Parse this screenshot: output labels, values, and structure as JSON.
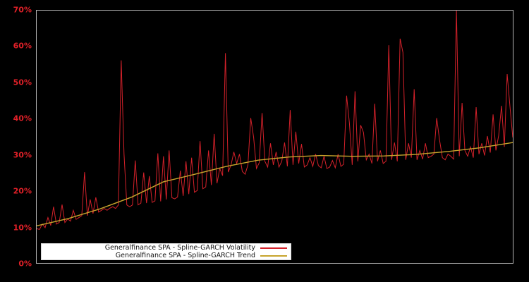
{
  "chart_data": {
    "type": "line",
    "title": "",
    "xlabel": "",
    "ylabel": "",
    "ylim": [
      0,
      70
    ],
    "grid": false,
    "background": "#000000",
    "plot_border_color": "#b5b5b5",
    "tick_label_color": "#e02028",
    "legend_position": "lower-left",
    "yticks": [
      {
        "value": 0,
        "label": "0%"
      },
      {
        "value": 10,
        "label": "10%"
      },
      {
        "value": 20,
        "label": "20%"
      },
      {
        "value": 30,
        "label": "30%"
      },
      {
        "value": 40,
        "label": "40%"
      },
      {
        "value": 50,
        "label": "50%"
      },
      {
        "value": 60,
        "label": "60%"
      },
      {
        "value": 70,
        "label": "70%"
      }
    ],
    "series": [
      {
        "name": "Generalfinance SPA - Spline-GARCH Volatility",
        "color": "#d4212a",
        "stroke_width": 1,
        "values": [
          9.5,
          9.3,
          10.8,
          9.8,
          12.6,
          10.4,
          15.6,
          10.8,
          11.2,
          16.2,
          11.2,
          12.2,
          11.6,
          14.6,
          12.1,
          12.6,
          13.1,
          25.2,
          13.1,
          17.6,
          13.7,
          18.2,
          14.1,
          14.6,
          15.1,
          14.6,
          15.2,
          15.6,
          15.1,
          16.1,
          56.2,
          30.2,
          16.1,
          15.6,
          16.1,
          28.4,
          16.1,
          16.6,
          25.1,
          16.6,
          24.1,
          16.8,
          17.2,
          30.4,
          17.1,
          29.6,
          17.6,
          31.2,
          18.1,
          17.8,
          18.3,
          25.6,
          18.6,
          28.2,
          19.1,
          29.2,
          19.6,
          20.1,
          33.8,
          20.6,
          21.1,
          31.2,
          21.6,
          35.8,
          22.1,
          26.2,
          24.2,
          58.2,
          25.2,
          27.2,
          30.8,
          27.6,
          30.2,
          25.4,
          24.6,
          27.2,
          40.2,
          34.8,
          26.2,
          27.8,
          41.6,
          28.2,
          26.6,
          33.2,
          27.2,
          30.8,
          26.6,
          28.2,
          33.4,
          26.8,
          42.4,
          27.2,
          36.4,
          27.6,
          33.0,
          26.6,
          27.2,
          29.2,
          26.8,
          30.2,
          27.0,
          26.4,
          29.6,
          26.2,
          26.6,
          28.4,
          26.4,
          30.2,
          26.8,
          27.4,
          46.4,
          38.8,
          27.2,
          47.6,
          28.2,
          38.2,
          36.2,
          28.6,
          30.2,
          27.6,
          44.2,
          28.2,
          31.2,
          27.6,
          28.2,
          60.4,
          28.6,
          33.4,
          28.2,
          62.2,
          58.4,
          28.6,
          33.2,
          29.2,
          48.2,
          28.6,
          31.2,
          28.8,
          33.2,
          29.2,
          29.6,
          30.2,
          40.2,
          34.2,
          29.2,
          28.6,
          30.2,
          29.6,
          28.8,
          70.0,
          29.6,
          44.4,
          31.2,
          29.6,
          32.2,
          29.2,
          43.2,
          30.2,
          33.2,
          29.8,
          35.2,
          30.6,
          41.2,
          31.2,
          35.4,
          43.6,
          32.2,
          52.4,
          43.4,
          34.8
        ]
      },
      {
        "name": "Generalfinance SPA - Spline-GARCH Trend",
        "color": "#c7a42c",
        "stroke_width": 1.4,
        "x_frac": [
          0.0,
          0.066,
          0.133,
          0.2,
          0.266,
          0.332,
          0.399,
          0.465,
          0.53,
          0.597,
          0.663,
          0.73,
          0.796,
          0.863,
          0.929,
          1.0
        ],
        "values": [
          10.3,
          12.3,
          15.0,
          18.3,
          22.5,
          24.6,
          26.8,
          28.5,
          29.4,
          29.8,
          29.6,
          29.7,
          30.1,
          30.9,
          31.9,
          33.4
        ]
      }
    ]
  }
}
